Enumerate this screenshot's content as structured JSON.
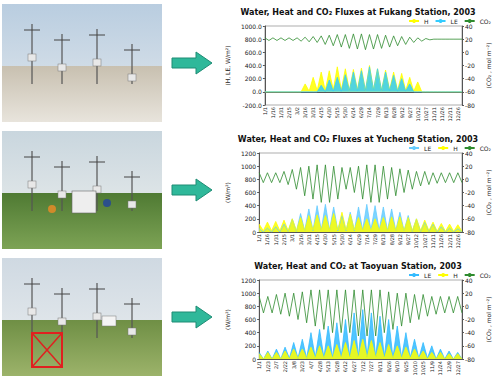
{
  "chart_data": [
    {
      "type": "line",
      "title": "Water, Heat and CO₂ Fluxes at Fukang Station, 2003",
      "y_label": "(H, LE, W/m²)",
      "y2_label": "(CO₂ , mol m⁻²)",
      "categories": [
        "1/1",
        null,
        "1/16",
        null,
        "1/31",
        null,
        "2/15",
        null,
        "3/2",
        null,
        "3/16",
        null,
        "3/31",
        null,
        "4/15",
        null,
        "4/30",
        null,
        "5/15",
        null,
        "5/30",
        null,
        "6/14",
        null,
        "6/29",
        null,
        "7/14",
        null,
        "7/29",
        null,
        "8/13",
        null,
        "8/28",
        null,
        "9/12",
        null,
        "9/27",
        null,
        "10/12",
        null,
        "10/27",
        null,
        "11/11",
        null,
        "11/26",
        null,
        "12/11",
        null,
        "12/26",
        null
      ],
      "ylim": [
        -200,
        1000
      ],
      "yticks": [
        {
          "value": -200,
          "label": "-200.0"
        },
        {
          "value": 0,
          "label": "0.0"
        },
        {
          "value": 200,
          "label": "200.0"
        },
        {
          "value": 400,
          "label": "400.0"
        },
        {
          "value": 600,
          "label": "600.0"
        },
        {
          "value": 800,
          "label": "800.0"
        },
        {
          "value": 1000,
          "label": "1000.0"
        }
      ],
      "y2lim": [
        -80,
        40
      ],
      "y2ticks": [
        -80,
        -60,
        -40,
        -20,
        0,
        20,
        40
      ],
      "grid": false,
      "legend": "upper right",
      "series": [
        {
          "name": "H",
          "color": "#ffff00",
          "values": [
            0,
            0,
            0,
            0,
            0,
            0,
            0,
            0,
            0,
            0,
            120,
            10,
            220,
            20,
            300,
            20,
            320,
            30,
            380,
            30,
            350,
            20,
            340,
            30,
            360,
            20,
            400,
            30,
            350,
            20,
            330,
            30,
            300,
            20,
            280,
            20,
            220,
            10,
            150,
            0,
            0,
            0,
            0,
            0,
            0,
            0,
            0,
            0,
            0,
            0
          ]
        },
        {
          "name": "LE",
          "color": "#33ccff",
          "values": [
            0,
            0,
            0,
            0,
            0,
            0,
            0,
            0,
            0,
            0,
            0,
            0,
            0,
            0,
            100,
            0,
            180,
            10,
            220,
            10,
            260,
            20,
            300,
            20,
            320,
            20,
            380,
            30,
            350,
            20,
            300,
            20,
            250,
            10,
            200,
            10,
            120,
            0,
            0,
            0,
            0,
            0,
            0,
            0,
            0,
            0,
            0,
            0,
            0,
            0
          ]
        },
        {
          "name": "CO₂",
          "color": "#2e8b2e",
          "axis": "y2",
          "values": [
            22,
            18,
            22,
            18,
            22,
            18,
            22,
            18,
            22,
            17,
            23,
            16,
            24,
            15,
            25,
            12,
            26,
            10,
            27,
            8,
            27,
            6,
            28,
            5,
            28,
            4,
            27,
            5,
            27,
            6,
            26,
            8,
            25,
            10,
            24,
            12,
            23,
            15,
            22,
            17,
            21,
            19,
            20,
            20,
            20,
            20,
            20,
            20,
            20,
            20
          ]
        }
      ]
    },
    {
      "type": "line",
      "title": "Water, Heat and CO₂ Fluxes at Yucheng Station, 2003",
      "y_label": "(W/m²)",
      "y2_label": "(CO₂ , mol m⁻²)",
      "categories": [
        "1/1",
        null,
        "1/16",
        null,
        "1/31",
        null,
        "2/15",
        null,
        "3/1",
        null,
        "3/16",
        null,
        "3/31",
        null,
        "4/15",
        null,
        "4/30",
        null,
        "5/15",
        null,
        "5/30",
        null,
        "6/14",
        null,
        "6/29",
        null,
        "7/14",
        null,
        "7/29",
        null,
        "8/13",
        null,
        "8/28",
        null,
        "9/12",
        null,
        "9/27",
        null,
        "10/12",
        null,
        "10/27",
        null,
        "11/11",
        null,
        "11/26",
        null,
        "12/11",
        null,
        "12/26",
        null
      ],
      "ylim": [
        0,
        1200
      ],
      "yticks": [
        0,
        200,
        400,
        600,
        800,
        1000,
        1200
      ],
      "y2lim": [
        -80,
        40
      ],
      "y2ticks": [
        -80,
        -60,
        -40,
        -20,
        0,
        20,
        40
      ],
      "grid": false,
      "legend": "upper right",
      "series": [
        {
          "name": "LE",
          "color": "#66ccff",
          "values": [
            50,
            0,
            60,
            0,
            80,
            0,
            120,
            10,
            200,
            10,
            280,
            20,
            350,
            20,
            400,
            30,
            420,
            30,
            380,
            20,
            250,
            20,
            300,
            20,
            380,
            30,
            420,
            30,
            400,
            30,
            380,
            20,
            350,
            20,
            300,
            20,
            250,
            10,
            200,
            10,
            150,
            10,
            120,
            0,
            80,
            0,
            60,
            0,
            50,
            0
          ]
        },
        {
          "name": "H",
          "color": "#ffff00",
          "values": [
            120,
            20,
            150,
            20,
            160,
            20,
            180,
            20,
            200,
            20,
            220,
            20,
            250,
            30,
            260,
            30,
            250,
            30,
            280,
            30,
            300,
            30,
            270,
            30,
            220,
            20,
            200,
            20,
            200,
            20,
            220,
            20,
            230,
            20,
            230,
            20,
            220,
            20,
            200,
            20,
            180,
            20,
            150,
            10,
            130,
            10,
            120,
            10,
            110,
            10
          ]
        },
        {
          "name": "CO₂",
          "color": "#2e8b2e",
          "axis": "y2",
          "values": [
            10,
            -5,
            10,
            -5,
            10,
            -5,
            12,
            -8,
            15,
            -15,
            18,
            -25,
            20,
            -30,
            22,
            -35,
            22,
            -35,
            20,
            -30,
            18,
            -15,
            18,
            -20,
            20,
            -30,
            22,
            -35,
            22,
            -35,
            20,
            -30,
            18,
            -25,
            16,
            -20,
            14,
            -15,
            12,
            -10,
            12,
            -8,
            10,
            -6,
            10,
            -5,
            10,
            -5,
            10,
            -5
          ]
        }
      ]
    },
    {
      "type": "line",
      "title": "Water, Heat and CO₂ at Taoyuan Station, 2003",
      "y_label": "(W/m²)",
      "y2_label": "(CO₂ , mol m⁻²)",
      "categories": [
        "1/1",
        null,
        "1/23",
        null,
        "2/7",
        null,
        "2/22",
        null,
        "3/8",
        null,
        "3/23",
        null,
        "4/7",
        null,
        "4/28",
        null,
        "5/13",
        null,
        "5/28",
        null,
        "6/12",
        null,
        "6/27",
        null,
        "7/12",
        null,
        "7/27",
        null,
        "8/11",
        null,
        "8/26",
        null,
        "9/10",
        null,
        "9/25",
        null,
        "10/10",
        null,
        "10/25",
        null,
        "11/9",
        null,
        "11/24",
        null,
        "12/9",
        null,
        "12/27",
        null
      ],
      "ylim": [
        0,
        1200
      ],
      "yticks": [
        0,
        200,
        400,
        600,
        800,
        1000,
        1200
      ],
      "y2lim": [
        -80,
        40
      ],
      "y2ticks": [
        -80,
        -60,
        -40,
        -20,
        0,
        20,
        40
      ],
      "grid": false,
      "legend": "upper right",
      "series": [
        {
          "name": "LE",
          "color": "#33bbff",
          "values": [
            100,
            0,
            120,
            0,
            150,
            0,
            180,
            10,
            250,
            10,
            300,
            10,
            400,
            20,
            450,
            20,
            500,
            20,
            550,
            30,
            600,
            30,
            700,
            30,
            750,
            30,
            700,
            30,
            650,
            30,
            600,
            20,
            500,
            20,
            400,
            20,
            300,
            10,
            250,
            10,
            200,
            0,
            150,
            0,
            120,
            0,
            100,
            0
          ]
        },
        {
          "name": "H",
          "color": "#ffff00",
          "values": [
            80,
            0,
            100,
            0,
            100,
            0,
            120,
            0,
            150,
            10,
            150,
            10,
            180,
            10,
            200,
            10,
            200,
            10,
            220,
            10,
            250,
            10,
            280,
            20,
            300,
            20,
            280,
            20,
            250,
            10,
            220,
            10,
            200,
            10,
            180,
            10,
            150,
            10,
            120,
            0,
            100,
            0,
            100,
            0,
            80,
            0,
            80,
            0
          ]
        },
        {
          "name": "CO₂",
          "color": "#2e8b2e",
          "axis": "y2",
          "values": [
            15,
            -10,
            15,
            -10,
            18,
            -12,
            20,
            -15,
            20,
            -20,
            22,
            -25,
            25,
            -30,
            25,
            -35,
            25,
            -40,
            25,
            -40,
            25,
            -40,
            25,
            -45,
            25,
            -45,
            25,
            -45,
            25,
            -40,
            22,
            -35,
            20,
            -30,
            20,
            -25,
            18,
            -20,
            18,
            -15,
            15,
            -12,
            15,
            -10,
            15,
            -10,
            15,
            -10
          ]
        }
      ]
    }
  ]
}
